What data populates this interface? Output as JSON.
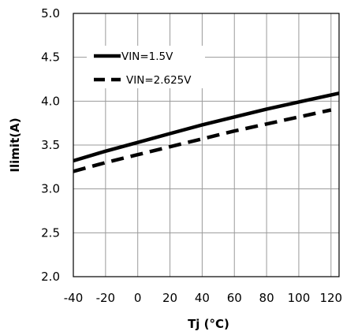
{
  "chart_data": {
    "type": "line",
    "xlabel": "Tj (°C)",
    "ylabel": "Ilimit(A)",
    "xlim": [
      -40,
      125
    ],
    "ylim": [
      2.0,
      5.0
    ],
    "x_ticks": [
      -40,
      -20,
      0,
      20,
      40,
      60,
      80,
      100,
      120
    ],
    "x_tick_labels": [
      "-40",
      "-20",
      "0",
      "20",
      "40",
      "60",
      "80",
      "100",
      "120"
    ],
    "y_ticks": [
      2.0,
      2.5,
      3.0,
      3.5,
      4.0,
      4.5,
      5.0
    ],
    "y_tick_labels": [
      "2.0",
      "2.5",
      "3.0",
      "3.5",
      "4.0",
      "4.5",
      "5.0"
    ],
    "grid": true,
    "legend_position": "top-left",
    "series": [
      {
        "name": "VIN=1.5V",
        "style": "solid",
        "color": "#000000",
        "x": [
          -40,
          -20,
          0,
          20,
          40,
          60,
          80,
          100,
          125
        ],
        "y": [
          3.32,
          3.43,
          3.53,
          3.63,
          3.73,
          3.82,
          3.91,
          3.99,
          4.09
        ]
      },
      {
        "name": "VIN=2.625V",
        "style": "dashed",
        "color": "#000000",
        "x": [
          -40,
          -20,
          0,
          20,
          40,
          60,
          80,
          100,
          120
        ],
        "y": [
          3.2,
          3.3,
          3.39,
          3.48,
          3.57,
          3.66,
          3.74,
          3.82,
          3.9
        ]
      }
    ]
  }
}
